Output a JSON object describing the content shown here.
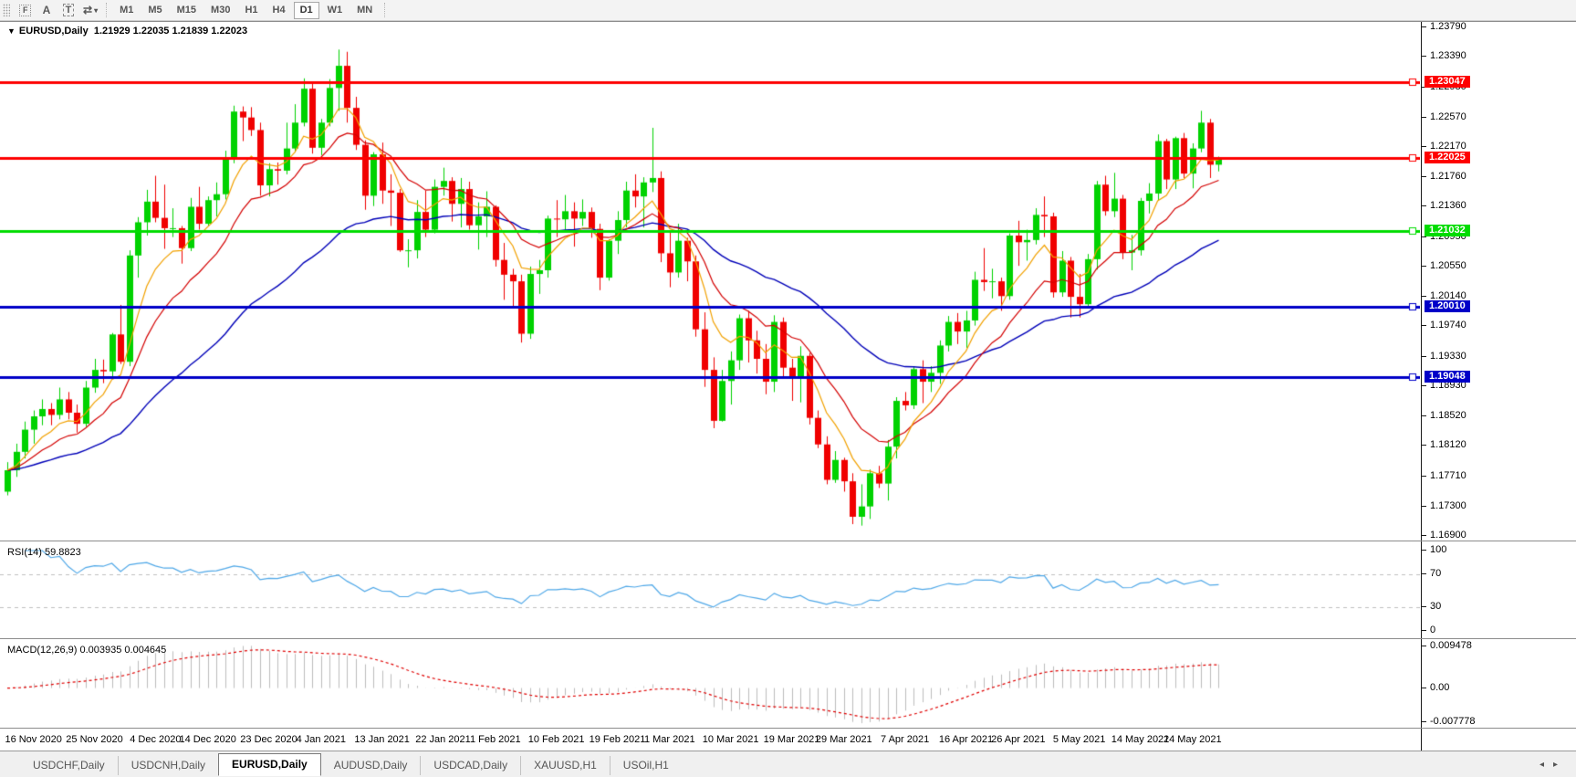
{
  "toolbar": {
    "tool_icons": {
      "grid_glyph": "F",
      "text_label_glyph": "A",
      "text_box_glyph": "T",
      "arrows_glyph": "⇄",
      "dropdown_caret": "▾"
    },
    "timeframes": [
      "M1",
      "M5",
      "M15",
      "M30",
      "H1",
      "H4",
      "D1",
      "W1",
      "MN"
    ],
    "active_timeframe": "D1"
  },
  "chart": {
    "title_caret": "▼",
    "title_symbol": "EURUSD,Daily",
    "title_ohlc": "1.21929 1.22035 1.21839 1.22023"
  },
  "chart_data": {
    "type": "candlestick",
    "symbol": "EURUSD",
    "timeframe": "Daily",
    "current_bar": {
      "open": 1.21929,
      "high": 1.22035,
      "low": 1.21839,
      "close": 1.22023
    },
    "price_axis": {
      "view_top": 1.23865,
      "view_bottom": 1.16838,
      "ticks": [
        "1.23790",
        "1.23390",
        "1.22980",
        "1.22570",
        "1.22170",
        "1.21760",
        "1.21360",
        "1.20950",
        "1.20550",
        "1.20140",
        "1.19740",
        "1.19330",
        "1.18930",
        "1.18520",
        "1.18120",
        "1.17710",
        "1.17300",
        "1.16900"
      ]
    },
    "hlines": [
      {
        "label": "1.23047",
        "value": 1.23047,
        "color": "#fe0000",
        "width": 3
      },
      {
        "label": "1.22025",
        "value": 1.22025,
        "color": "#fe0000",
        "width": 3
      },
      {
        "label": "1.21032",
        "value": 1.21032,
        "color": "#00dc00",
        "width": 3
      },
      {
        "label": "1.20010",
        "value": 1.2001,
        "color": "#0000c8",
        "width": 3
      },
      {
        "label": "1.19048",
        "value": 1.19048,
        "color": "#0000c8",
        "width": 3
      }
    ],
    "date_ticks": [
      [
        "16 Nov 2020",
        3
      ],
      [
        "25 Nov 2020",
        10
      ],
      [
        "4 Dec 2020",
        17
      ],
      [
        "14 Dec 2020",
        23
      ],
      [
        "23 Dec 2020",
        30
      ],
      [
        "4 Jan 2021",
        36
      ],
      [
        "13 Jan 2021",
        43
      ],
      [
        "22 Jan 2021",
        50
      ],
      [
        "1 Feb 2021",
        56
      ],
      [
        "10 Feb 2021",
        63
      ],
      [
        "19 Feb 2021",
        70
      ],
      [
        "1 Mar 2021",
        76
      ],
      [
        "10 Mar 2021",
        83
      ],
      [
        "19 Mar 2021",
        90
      ],
      [
        "29 Mar 2021",
        96
      ],
      [
        "7 Apr 2021",
        103
      ],
      [
        "16 Apr 2021",
        110
      ],
      [
        "26 Apr 2021",
        116
      ],
      [
        "5 May 2021",
        123
      ],
      [
        "14 May 2021",
        130
      ],
      [
        "24 May 2021",
        136
      ]
    ],
    "up_color": "#00d200",
    "down_color": "#f00000",
    "moving_averages": [
      {
        "period": 7,
        "color": "#f2a100"
      },
      {
        "period": 14,
        "color": "#d40000"
      },
      {
        "period": 40,
        "color": "#0000b8"
      }
    ],
    "candles": [
      [
        1.175,
        1.179,
        1.1745,
        1.1779
      ],
      [
        1.1779,
        1.1815,
        1.177,
        1.1804
      ],
      [
        1.1804,
        1.1845,
        1.1795,
        1.1834
      ],
      [
        1.1834,
        1.186,
        1.1815,
        1.1852
      ],
      [
        1.1852,
        1.1875,
        1.184,
        1.1862
      ],
      [
        1.1862,
        1.187,
        1.184,
        1.1854
      ],
      [
        1.1854,
        1.1891,
        1.1848,
        1.1875
      ],
      [
        1.1875,
        1.1885,
        1.1848,
        1.1857
      ],
      [
        1.1857,
        1.1868,
        1.183,
        1.1842
      ],
      [
        1.1842,
        1.19,
        1.1838,
        1.1891
      ],
      [
        1.1891,
        1.193,
        1.1884,
        1.1915
      ],
      [
        1.1915,
        1.1929,
        1.1897,
        1.1913
      ],
      [
        1.1913,
        1.1965,
        1.1905,
        1.1963
      ],
      [
        1.1963,
        1.2003,
        1.1923,
        1.1926
      ],
      [
        1.1926,
        1.2077,
        1.192,
        1.207
      ],
      [
        1.207,
        1.2122,
        1.204,
        1.2115
      ],
      [
        1.2115,
        1.2159,
        1.2097,
        1.2143
      ],
      [
        1.2143,
        1.2178,
        1.2115,
        1.2121
      ],
      [
        1.2121,
        1.2166,
        1.2079,
        1.2107
      ],
      [
        1.2107,
        1.2134,
        1.2095,
        1.2107
      ],
      [
        1.2107,
        1.211,
        1.2059,
        1.208
      ],
      [
        1.208,
        1.2148,
        1.2076,
        1.2136
      ],
      [
        1.2136,
        1.2163,
        1.2105,
        1.2113
      ],
      [
        1.2113,
        1.215,
        1.211,
        1.2145
      ],
      [
        1.2145,
        1.2169,
        1.2123,
        1.2153
      ],
      [
        1.2153,
        1.2212,
        1.2146,
        1.22
      ],
      [
        1.22,
        1.2273,
        1.2195,
        1.2265
      ],
      [
        1.2265,
        1.2272,
        1.2225,
        1.2257
      ],
      [
        1.2257,
        1.2271,
        1.2232,
        1.224
      ],
      [
        1.224,
        1.225,
        1.2151,
        1.2165
      ],
      [
        1.2165,
        1.2195,
        1.215,
        1.2187
      ],
      [
        1.2187,
        1.2196,
        1.2166,
        1.2185
      ],
      [
        1.2185,
        1.225,
        1.218,
        1.2215
      ],
      [
        1.2215,
        1.2275,
        1.221,
        1.225
      ],
      [
        1.225,
        1.231,
        1.2245,
        1.2296
      ],
      [
        1.2296,
        1.2304,
        1.2208,
        1.2216
      ],
      [
        1.2216,
        1.2255,
        1.2206,
        1.225
      ],
      [
        1.225,
        1.2309,
        1.2245,
        1.2297
      ],
      [
        1.2297,
        1.2349,
        1.2266,
        1.2327
      ],
      [
        1.2327,
        1.2346,
        1.225,
        1.227
      ],
      [
        1.227,
        1.2285,
        1.2213,
        1.222
      ],
      [
        1.222,
        1.2226,
        1.2132,
        1.2151
      ],
      [
        1.2151,
        1.221,
        1.2137,
        1.2207
      ],
      [
        1.2207,
        1.2223,
        1.214,
        1.2158
      ],
      [
        1.2158,
        1.218,
        1.211,
        1.2155
      ],
      [
        1.2155,
        1.216,
        1.2075,
        1.2077
      ],
      [
        1.2077,
        1.2092,
        1.2054,
        1.2077
      ],
      [
        1.2077,
        1.2145,
        1.2066,
        1.2129
      ],
      [
        1.2129,
        1.2158,
        1.2095,
        1.2105
      ],
      [
        1.2105,
        1.2173,
        1.21,
        1.2163
      ],
      [
        1.2163,
        1.2189,
        1.2151,
        1.2171
      ],
      [
        1.2171,
        1.2176,
        1.2116,
        1.214
      ],
      [
        1.214,
        1.2175,
        1.2108,
        1.216
      ],
      [
        1.216,
        1.217,
        1.2105,
        1.2111
      ],
      [
        1.2111,
        1.2142,
        1.2078,
        1.2123
      ],
      [
        1.2123,
        1.2157,
        1.2095,
        1.2136
      ],
      [
        1.2136,
        1.2138,
        1.2055,
        1.2064
      ],
      [
        1.2064,
        1.2087,
        1.201,
        1.2044
      ],
      [
        1.2044,
        1.2052,
        1.1999,
        1.2035
      ],
      [
        1.2035,
        1.2044,
        1.1952,
        1.1964
      ],
      [
        1.1964,
        1.2055,
        1.1957,
        1.2045
      ],
      [
        1.2045,
        1.2064,
        1.2018,
        1.205
      ],
      [
        1.205,
        1.2124,
        1.204,
        1.212
      ],
      [
        1.212,
        1.2145,
        1.2095,
        1.2119
      ],
      [
        1.2119,
        1.2152,
        1.2105,
        1.213
      ],
      [
        1.213,
        1.2142,
        1.2082,
        1.212
      ],
      [
        1.212,
        1.2146,
        1.211,
        1.2129
      ],
      [
        1.2129,
        1.2135,
        1.2094,
        1.2106
      ],
      [
        1.2106,
        1.2113,
        1.2023,
        1.204
      ],
      [
        1.204,
        1.2092,
        1.2036,
        1.209
      ],
      [
        1.209,
        1.213,
        1.2072,
        1.2118
      ],
      [
        1.2118,
        1.217,
        1.2108,
        1.2158
      ],
      [
        1.2158,
        1.218,
        1.2135,
        1.215
      ],
      [
        1.215,
        1.2176,
        1.2108,
        1.2169
      ],
      [
        1.2169,
        1.2243,
        1.2156,
        1.2175
      ],
      [
        1.2175,
        1.2184,
        1.2061,
        1.2073
      ],
      [
        1.2073,
        1.2101,
        1.2027,
        1.2047
      ],
      [
        1.2047,
        1.2113,
        1.204,
        1.209
      ],
      [
        1.209,
        1.2094,
        1.2035,
        1.2062
      ],
      [
        1.2062,
        1.207,
        1.196,
        1.197
      ],
      [
        1.197,
        1.1993,
        1.1892,
        1.1915
      ],
      [
        1.1915,
        1.1932,
        1.1836,
        1.1846
      ],
      [
        1.1846,
        1.1915,
        1.1845,
        1.19
      ],
      [
        1.19,
        1.194,
        1.1868,
        1.1928
      ],
      [
        1.1928,
        1.199,
        1.1915,
        1.1985
      ],
      [
        1.1985,
        1.1995,
        1.1925,
        1.1955
      ],
      [
        1.1955,
        1.1968,
        1.191,
        1.193
      ],
      [
        1.193,
        1.195,
        1.1882,
        1.1899
      ],
      [
        1.1899,
        1.1989,
        1.1885,
        1.198
      ],
      [
        1.198,
        1.1986,
        1.1905,
        1.1918
      ],
      [
        1.1918,
        1.193,
        1.1873,
        1.1904
      ],
      [
        1.1904,
        1.1947,
        1.1871,
        1.1934
      ],
      [
        1.1934,
        1.1938,
        1.1841,
        1.185
      ],
      [
        1.185,
        1.186,
        1.1809,
        1.1814
      ],
      [
        1.1814,
        1.1825,
        1.176,
        1.1766
      ],
      [
        1.1766,
        1.1805,
        1.1762,
        1.1793
      ],
      [
        1.1793,
        1.1796,
        1.175,
        1.1764
      ],
      [
        1.1764,
        1.1775,
        1.1706,
        1.1716
      ],
      [
        1.1716,
        1.176,
        1.1704,
        1.173
      ],
      [
        1.173,
        1.178,
        1.1713,
        1.1775
      ],
      [
        1.1775,
        1.1785,
        1.1755,
        1.1761
      ],
      [
        1.1761,
        1.182,
        1.1738,
        1.1811
      ],
      [
        1.1811,
        1.1878,
        1.1795,
        1.1873
      ],
      [
        1.1873,
        1.1885,
        1.186,
        1.1867
      ],
      [
        1.1867,
        1.192,
        1.1862,
        1.1916
      ],
      [
        1.1916,
        1.1928,
        1.187,
        1.1899
      ],
      [
        1.1899,
        1.192,
        1.1885,
        1.1911
      ],
      [
        1.1911,
        1.1955,
        1.1896,
        1.1948
      ],
      [
        1.1948,
        1.1988,
        1.194,
        1.198
      ],
      [
        1.198,
        1.1992,
        1.195,
        1.1967
      ],
      [
        1.1967,
        1.1995,
        1.1945,
        1.1982
      ],
      [
        1.1982,
        1.2048,
        1.1975,
        1.2037
      ],
      [
        1.2037,
        1.208,
        1.2022,
        1.2034
      ],
      [
        1.2034,
        1.2052,
        1.2012,
        1.2035
      ],
      [
        1.2035,
        1.204,
        1.1995,
        1.2015
      ],
      [
        1.2015,
        1.21,
        1.201,
        1.2097
      ],
      [
        1.2097,
        1.2117,
        1.2056,
        1.2088
      ],
      [
        1.2088,
        1.2105,
        1.2063,
        1.2091
      ],
      [
        1.2091,
        1.2134,
        1.2085,
        1.2125
      ],
      [
        1.2125,
        1.215,
        1.2095,
        1.2123
      ],
      [
        1.2123,
        1.2128,
        1.2013,
        1.202
      ],
      [
        1.202,
        1.2076,
        1.2014,
        1.2063
      ],
      [
        1.2063,
        1.2068,
        1.1986,
        1.2014
      ],
      [
        1.2014,
        1.2045,
        1.1986,
        1.2004
      ],
      [
        1.2004,
        1.2072,
        1.1999,
        1.2065
      ],
      [
        1.2065,
        1.2171,
        1.2051,
        1.2166
      ],
      [
        1.2166,
        1.2178,
        1.2124,
        1.213
      ],
      [
        1.213,
        1.2182,
        1.2122,
        1.2147
      ],
      [
        1.2147,
        1.2152,
        1.2065,
        1.2074
      ],
      [
        1.2074,
        1.2098,
        1.205,
        1.2077
      ],
      [
        1.2077,
        1.2148,
        1.207,
        1.2144
      ],
      [
        1.2144,
        1.2168,
        1.2127,
        1.2154
      ],
      [
        1.2154,
        1.2234,
        1.2145,
        1.2225
      ],
      [
        1.2225,
        1.2228,
        1.216,
        1.2173
      ],
      [
        1.2173,
        1.2231,
        1.216,
        1.2229
      ],
      [
        1.2229,
        1.2236,
        1.2175,
        1.2181
      ],
      [
        1.2181,
        1.2222,
        1.2161,
        1.2215
      ],
      [
        1.2215,
        1.2266,
        1.221,
        1.225
      ],
      [
        1.225,
        1.2255,
        1.2175,
        1.2193
      ],
      [
        1.2193,
        1.2204,
        1.2184,
        1.2202
      ]
    ],
    "rsi": {
      "label": "RSI(14) 59.8823",
      "period": 14,
      "value": "59.8823",
      "color": "#4fa8e8",
      "axis_labels": [
        "100",
        "70",
        "30",
        "0"
      ],
      "dashed_levels": [
        70,
        30
      ]
    },
    "macd": {
      "label": "MACD(12,26,9) 0.003935 0.004645",
      "fast": 12,
      "slow": 26,
      "signal_period": 9,
      "values_text": "0.003935 0.004645",
      "histogram_color": "#bdbdbd",
      "signal_color": "#e00000",
      "axis_labels": [
        "0.009478",
        "0.00",
        "-0.007778"
      ],
      "y_max": 0.009478,
      "y_min": -0.007778
    }
  },
  "tabs": {
    "items": [
      "USDCHF,Daily",
      "USDCNH,Daily",
      "EURUSD,Daily",
      "AUDUSD,Daily",
      "USDCAD,Daily",
      "XAUUSD,H1",
      "USOil,H1"
    ],
    "active": "EURUSD,Daily",
    "scroll_left": "◂",
    "scroll_right": "▸"
  }
}
